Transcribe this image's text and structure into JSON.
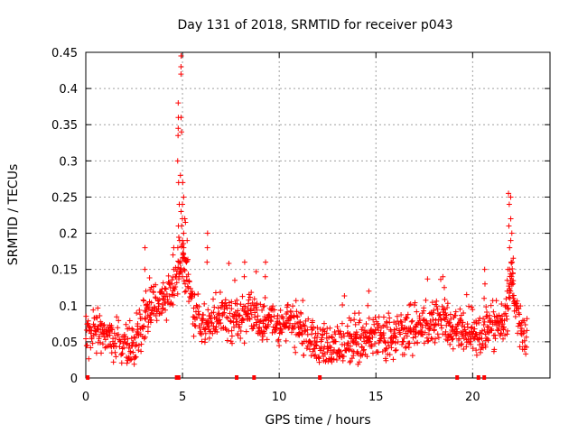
{
  "chart_data": {
    "type": "scatter",
    "title": "Day 131 of 2018, SRMTID for receiver p043",
    "xlabel": "GPS time / hours",
    "ylabel": "SRMTID / TECUs",
    "xlim": [
      0,
      24
    ],
    "ylim": [
      0,
      0.45
    ],
    "x_ticks": [
      0,
      5,
      10,
      15,
      20
    ],
    "y_ticks": [
      0,
      0.05,
      0.1,
      0.15,
      0.2,
      0.25,
      0.3,
      0.35,
      0.4,
      0.45
    ],
    "x_tick_labels": [
      "0",
      "5",
      "10",
      "15",
      "20"
    ],
    "y_tick_labels": [
      "0",
      "0.05",
      "0.1",
      "0.15",
      "0.2",
      "0.25",
      "0.3",
      "0.35",
      "0.4",
      "0.45"
    ],
    "grid": true,
    "marker": "+",
    "color": "#ff0000",
    "trend": {
      "x": [
        0.0,
        0.5,
        1.0,
        1.5,
        2.0,
        2.5,
        3.0,
        3.5,
        4.0,
        4.5,
        4.8,
        5.0,
        5.2,
        5.5,
        6.0,
        6.5,
        7.0,
        7.5,
        8.0,
        8.5,
        9.0,
        9.5,
        10.0,
        10.5,
        11.0,
        11.5,
        12.0,
        12.5,
        13.0,
        13.5,
        14.0,
        14.5,
        15.0,
        15.5,
        16.0,
        16.5,
        17.0,
        17.5,
        18.0,
        18.5,
        19.0,
        19.5,
        20.0,
        20.5,
        21.0,
        21.5,
        21.8,
        22.0,
        22.2,
        22.5,
        22.8
      ],
      "y": [
        0.06,
        0.07,
        0.06,
        0.05,
        0.045,
        0.05,
        0.08,
        0.1,
        0.11,
        0.12,
        0.15,
        0.18,
        0.14,
        0.1,
        0.07,
        0.075,
        0.09,
        0.085,
        0.08,
        0.09,
        0.085,
        0.075,
        0.07,
        0.08,
        0.07,
        0.06,
        0.05,
        0.045,
        0.04,
        0.045,
        0.05,
        0.055,
        0.06,
        0.055,
        0.06,
        0.065,
        0.07,
        0.07,
        0.075,
        0.08,
        0.075,
        0.07,
        0.065,
        0.06,
        0.07,
        0.08,
        0.09,
        0.15,
        0.1,
        0.07,
        0.06
      ],
      "spread": 0.022
    },
    "spikes": [
      {
        "x": 4.8,
        "y": [
          0.14,
          0.16,
          0.18,
          0.21,
          0.24,
          0.27,
          0.3,
          0.335,
          0.345,
          0.36,
          0.38
        ]
      },
      {
        "x": 4.9,
        "y": [
          0.15,
          0.19,
          0.23,
          0.28,
          0.34,
          0.36,
          0.42,
          0.43,
          0.445
        ]
      },
      {
        "x": 5.0,
        "y": [
          0.14,
          0.17,
          0.19,
          0.21,
          0.24,
          0.27,
          0.22
        ]
      },
      {
        "x": 5.1,
        "y": [
          0.13,
          0.15,
          0.18,
          0.2,
          0.22,
          0.25
        ]
      },
      {
        "x": 5.2,
        "y": [
          0.12,
          0.14,
          0.16,
          0.19,
          0.215
        ]
      },
      {
        "x": 4.5,
        "y": [
          0.13,
          0.15,
          0.17,
          0.18
        ]
      },
      {
        "x": 3.1,
        "y": [
          0.12,
          0.15,
          0.18
        ]
      },
      {
        "x": 21.9,
        "y": [
          0.11,
          0.13,
          0.15,
          0.18,
          0.21,
          0.24,
          0.255
        ]
      },
      {
        "x": 22.0,
        "y": [
          0.12,
          0.14,
          0.16,
          0.19,
          0.2,
          0.22,
          0.25
        ]
      },
      {
        "x": 21.8,
        "y": [
          0.1,
          0.12,
          0.135,
          0.15
        ]
      },
      {
        "x": 22.1,
        "y": [
          0.11,
          0.13,
          0.145
        ]
      },
      {
        "x": 20.6,
        "y": [
          0.11,
          0.13,
          0.15
        ]
      },
      {
        "x": 8.2,
        "y": [
          0.14,
          0.16
        ]
      },
      {
        "x": 9.3,
        "y": [
          0.14,
          0.16
        ]
      },
      {
        "x": 6.3,
        "y": [
          0.16,
          0.18,
          0.2
        ]
      },
      {
        "x": 18.5,
        "y": [
          0.125,
          0.14
        ]
      },
      {
        "x": 14.6,
        "y": [
          0.1,
          0.12
        ]
      }
    ],
    "rug_x": [
      0.1,
      4.7,
      4.8,
      7.8,
      8.7,
      12.1,
      19.2,
      20.3,
      20.6
    ]
  }
}
